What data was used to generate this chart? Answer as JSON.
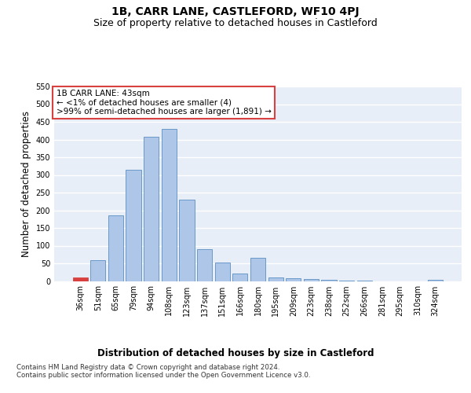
{
  "title": "1B, CARR LANE, CASTLEFORD, WF10 4PJ",
  "subtitle": "Size of property relative to detached houses in Castleford",
  "xlabel": "Distribution of detached houses by size in Castleford",
  "ylabel": "Number of detached properties",
  "categories": [
    "36sqm",
    "51sqm",
    "65sqm",
    "79sqm",
    "94sqm",
    "108sqm",
    "123sqm",
    "137sqm",
    "151sqm",
    "166sqm",
    "180sqm",
    "195sqm",
    "209sqm",
    "223sqm",
    "238sqm",
    "252sqm",
    "266sqm",
    "281sqm",
    "295sqm",
    "310sqm",
    "324sqm"
  ],
  "values": [
    10,
    60,
    185,
    315,
    408,
    430,
    230,
    90,
    52,
    22,
    65,
    10,
    8,
    5,
    3,
    2,
    1,
    0,
    0,
    0,
    3
  ],
  "bar_color": "#aec6e8",
  "bar_edge_color": "#5a8fc2",
  "highlight_bar_index": 0,
  "highlight_bar_color": "#d94040",
  "highlight_bar_edge_color": "#d94040",
  "annotation_line1": "1B CARR LANE: 43sqm",
  "annotation_line2": "← <1% of detached houses are smaller (4)",
  "annotation_line3": ">99% of semi-detached houses are larger (1,891) →",
  "annotation_box_color": "#ffffff",
  "annotation_box_edge_color": "#d94040",
  "ylim": [
    0,
    550
  ],
  "yticks": [
    0,
    50,
    100,
    150,
    200,
    250,
    300,
    350,
    400,
    450,
    500,
    550
  ],
  "background_color": "#e8eef8",
  "grid_color": "#ffffff",
  "title_fontsize": 10,
  "subtitle_fontsize": 9,
  "axis_label_fontsize": 8.5,
  "tick_fontsize": 7,
  "annotation_fontsize": 7.5,
  "footer_text": "Contains HM Land Registry data © Crown copyright and database right 2024.\nContains public sector information licensed under the Open Government Licence v3.0."
}
